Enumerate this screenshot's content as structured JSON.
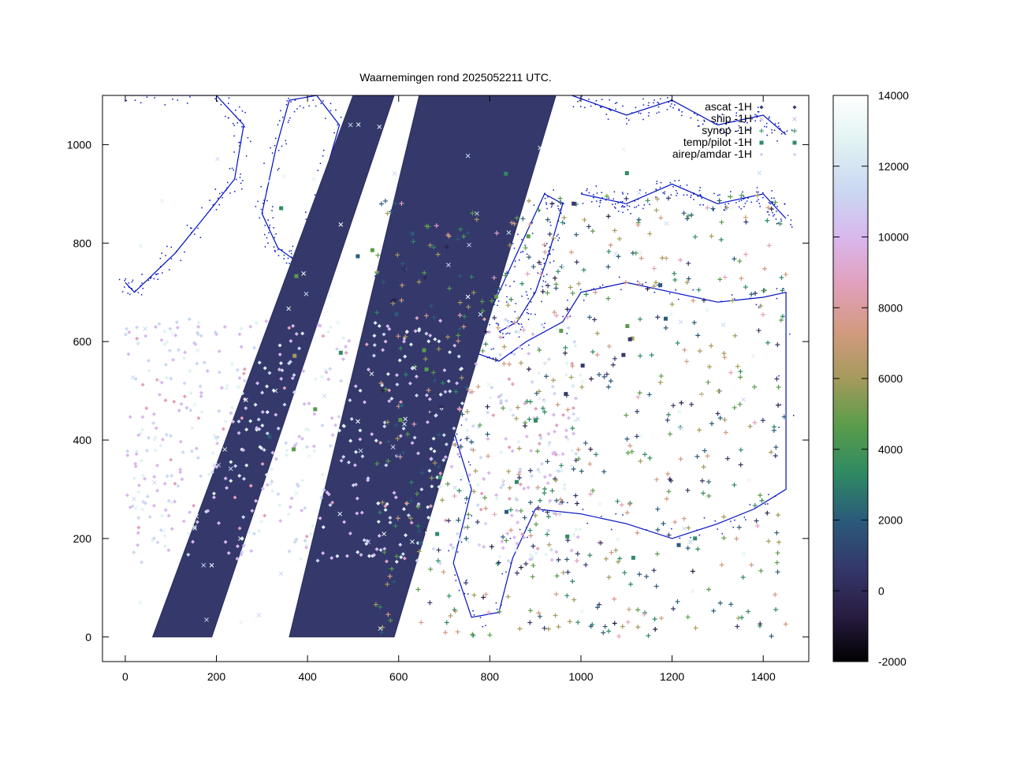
{
  "chart_data": {
    "type": "scatter",
    "title": "Waarnemingen rond 2025052211 UTC.",
    "xlim": [
      -50,
      1500
    ],
    "ylim": [
      -50,
      1100
    ],
    "x_ticks": [
      0,
      200,
      400,
      600,
      800,
      1000,
      1200,
      1400
    ],
    "y_ticks": [
      0,
      200,
      400,
      600,
      800,
      1000
    ],
    "legend_position": "top-right",
    "legend": [
      {
        "label": "ascat -1H",
        "marker": "diamond"
      },
      {
        "label": "ship -1H",
        "marker": "x"
      },
      {
        "label": "synop -1H",
        "marker": "plus"
      },
      {
        "label": "temp/pilot -1H",
        "marker": "square"
      },
      {
        "label": "airep/amdar -1H",
        "marker": "diamond-small"
      }
    ],
    "colorbar": {
      "range": [
        -2000,
        14000
      ],
      "ticks": [
        -2000,
        0,
        2000,
        4000,
        6000,
        8000,
        10000,
        12000,
        14000
      ],
      "colors": [
        "#000000",
        "#2a1d43",
        "#34386b",
        "#2a5b7a",
        "#2f8a63",
        "#5a9c4a",
        "#a59a5c",
        "#d29a80",
        "#e2a0bd",
        "#d8b8ee",
        "#cad8f2",
        "#e0f2f2",
        "#ffffff"
      ]
    },
    "series": [
      {
        "name": "ascat -1H",
        "swaths": [
          {
            "bottom": [
              60,
              190
            ],
            "top": [
              500,
              590
            ]
          },
          {
            "bottom": [
              360,
              590
            ],
            "top": [
              645,
              945
            ]
          }
        ]
      },
      {
        "name": "synop -1H",
        "x_range": [
          550,
          1450
        ],
        "y_range": [
          0,
          900
        ]
      },
      {
        "name": "airep/amdar -1H",
        "x_range": [
          0,
          1000
        ],
        "y_range": [
          150,
          650
        ]
      }
    ]
  }
}
